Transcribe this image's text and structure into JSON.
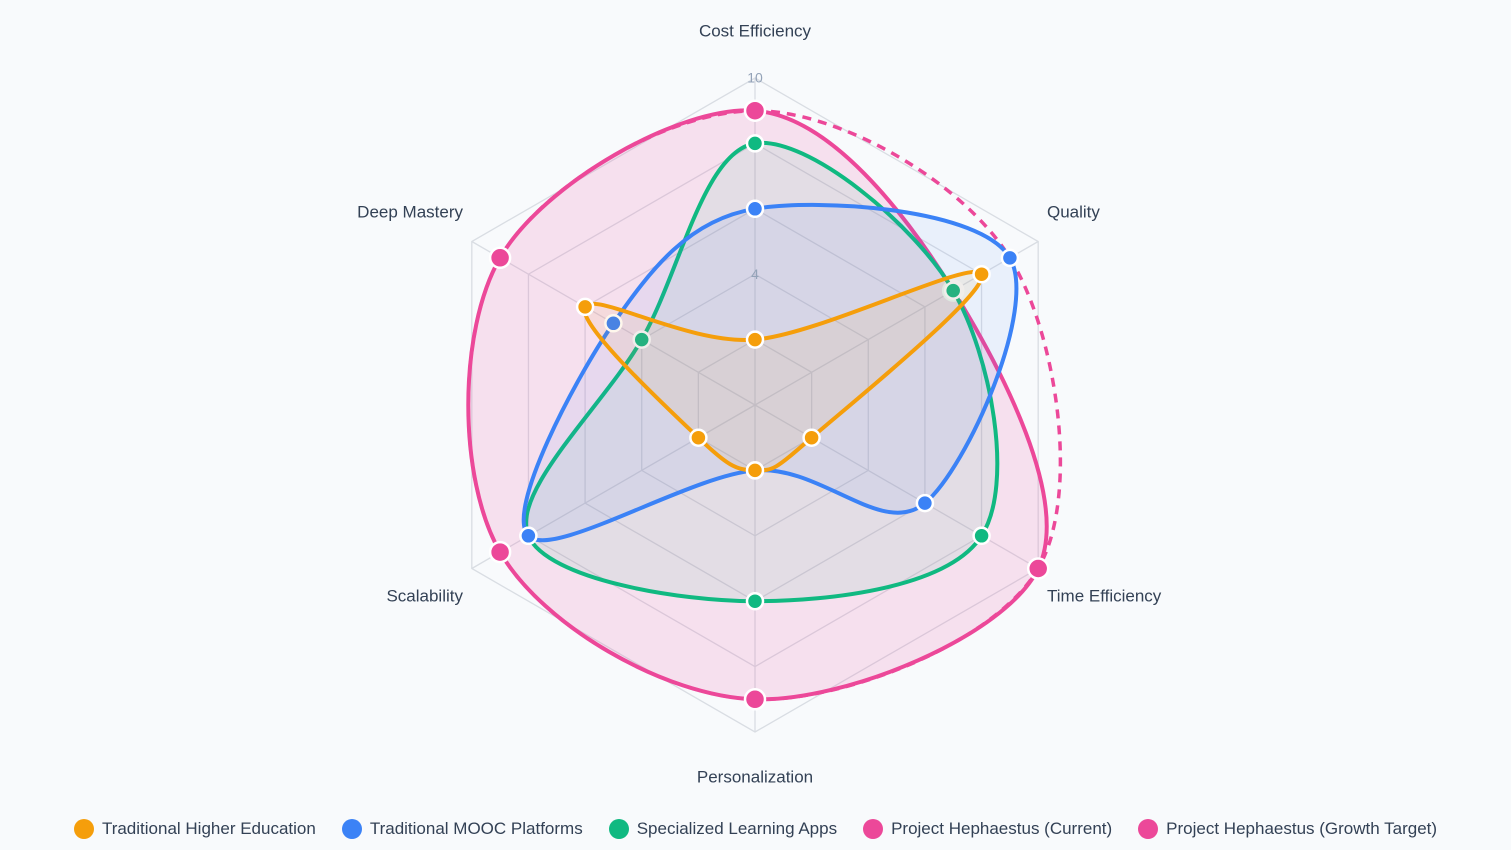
{
  "chart_data": {
    "type": "radar",
    "axes": [
      "Cost Efficiency",
      "Quality",
      "Time Efficiency",
      "Personalization",
      "Scalability",
      "Deep Mastery"
    ],
    "rlim": [
      0,
      10
    ],
    "tick_labels": [
      "10",
      "4"
    ],
    "series": [
      {
        "name": "Traditional Higher Education",
        "color": "#f59e0b",
        "values": [
          2,
          8,
          2,
          2,
          2,
          6
        ]
      },
      {
        "name": "Traditional MOOC Platforms",
        "color": "#3b82f6",
        "values": [
          6,
          9,
          6,
          2,
          8,
          5
        ]
      },
      {
        "name": "Specialized Learning Apps",
        "color": "#10b981",
        "values": [
          8,
          7,
          8,
          6,
          8,
          4
        ]
      },
      {
        "name": "Project Hephaestus (Current)",
        "color": "#ec4899",
        "values": [
          9,
          7,
          10,
          9,
          9,
          9
        ]
      },
      {
        "name": "Project Hephaestus (Growth Target)",
        "color": "#ec4899",
        "values": [
          9,
          9,
          10,
          9,
          9,
          9
        ],
        "dashed": true
      }
    ],
    "legend_position": "bottom"
  }
}
